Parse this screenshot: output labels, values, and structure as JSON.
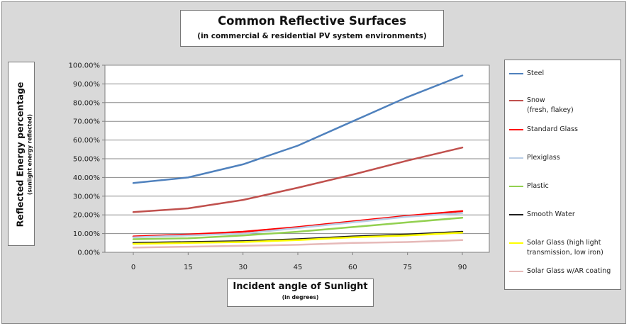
{
  "chart_data": {
    "type": "line",
    "title": "Common Reflective Surfaces",
    "subtitle": "(in commercial & residential PV system environments)",
    "ylabel": "Reflected Energy percentage",
    "ylabel_note": "(sunlight energy reflected)",
    "xlabel": "Incident angle of Sunlight",
    "xlabel_note": "(in degrees)",
    "x": [
      0,
      15,
      30,
      45,
      60,
      75,
      90
    ],
    "x_tick_labels": [
      "0",
      "15",
      "30",
      "45",
      "60",
      "75",
      "90"
    ],
    "ylim": [
      0,
      100
    ],
    "y_tick_labels": [
      "0.00%",
      "10.00%",
      "20.00%",
      "30.00%",
      "40.00%",
      "50.00%",
      "60.00%",
      "70.00%",
      "80.00%",
      "90.00%",
      "100.00%"
    ],
    "grid": "horizontal",
    "legend_position": "right",
    "series": [
      {
        "name": "Steel",
        "color": "#4f81bd",
        "values": [
          37,
          40,
          47,
          57,
          70,
          83,
          94.5
        ]
      },
      {
        "name": "Snow",
        "name_note": "(fresh, flakey)",
        "color": "#c0504d",
        "values": [
          21.5,
          23.5,
          28,
          34.5,
          41.5,
          49,
          56
        ]
      },
      {
        "name": "Standard Glass",
        "color": "#ff0000",
        "values": [
          8.5,
          9.5,
          11,
          13.5,
          16.5,
          19.5,
          22
        ]
      },
      {
        "name": "Plexiglass",
        "color": "#b9cde5",
        "values": [
          8,
          9,
          10,
          13,
          16,
          19,
          21
        ]
      },
      {
        "name": "Plastic",
        "color": "#92d050",
        "values": [
          7,
          7.5,
          9,
          11,
          13.5,
          16,
          18.5
        ]
      },
      {
        "name": "Smooth Water",
        "color": "#1f1f1f",
        "values": [
          5,
          5.5,
          6,
          7,
          8.5,
          9.5,
          11
        ]
      },
      {
        "name": "Solar Glass (high light transmission, low iron)",
        "color": "#ffff00",
        "values": [
          4.5,
          5,
          5.5,
          6.5,
          8,
          9,
          10.5
        ]
      },
      {
        "name": "Solar Glass w/AR coating",
        "color": "#e6b9b8",
        "values": [
          2.5,
          3,
          3.5,
          4,
          5,
          5.5,
          6.5
        ]
      }
    ]
  }
}
